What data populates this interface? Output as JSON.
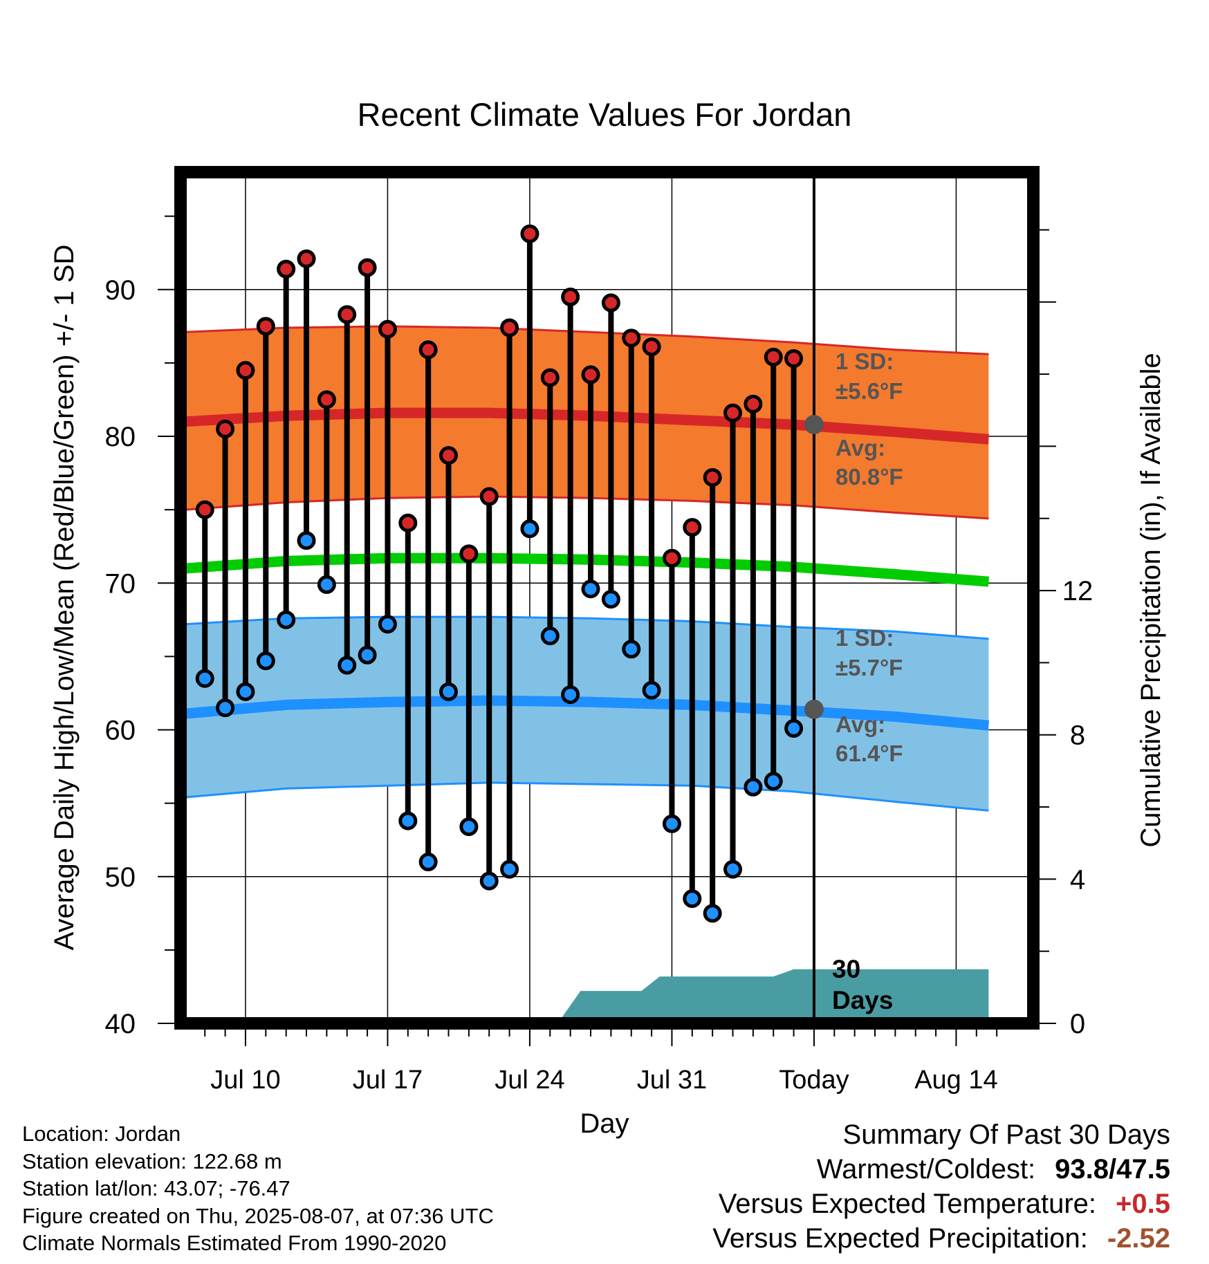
{
  "chart_data": {
    "type": "line",
    "title": "Recent Climate Values For Jordan",
    "xlabel": "Day",
    "ylabel": "Average Daily High/Low/Mean (Red/Blue/Green) +/- 1 SD",
    "y2label": "Cumulative Precipitation (in), If Available",
    "ylim": [
      40,
      98
    ],
    "y2lim": [
      0,
      23.6
    ],
    "yticks": [
      40,
      50,
      60,
      70,
      80,
      90
    ],
    "y2ticks": [
      0,
      4,
      8,
      12
    ],
    "xlim": [
      -3.2,
      38.8
    ],
    "xticks": [
      {
        "day": 0,
        "label": "Jul 10"
      },
      {
        "day": 7,
        "label": "Jul 17"
      },
      {
        "day": 14,
        "label": "Jul 24"
      },
      {
        "day": 21,
        "label": "Jul 31"
      },
      {
        "day": 28,
        "label": "Today"
      },
      {
        "day": 35,
        "label": "Aug 14"
      }
    ],
    "grid": true,
    "colors": {
      "high": "#d62728",
      "low": "#1e90ff",
      "mean": "#00cc00",
      "high_band": "#f47a2e",
      "low_band": "#82c1e6",
      "precip": "#4a9ca3",
      "avg_marker": "#555555"
    },
    "daily_observations": {
      "days": [
        -2,
        -1,
        0,
        1,
        2,
        3,
        4,
        5,
        6,
        7,
        8,
        9,
        10,
        11,
        12,
        13,
        14,
        15,
        16,
        17,
        18,
        19,
        20,
        21,
        22,
        23,
        24,
        25,
        26,
        27
      ],
      "high": [
        75.0,
        80.5,
        84.5,
        87.5,
        91.4,
        92.1,
        82.5,
        88.3,
        91.5,
        87.3,
        74.1,
        85.9,
        78.7,
        72.0,
        75.9,
        87.4,
        93.8,
        84.0,
        89.5,
        84.2,
        89.1,
        86.7,
        86.1,
        71.7,
        73.8,
        77.2,
        81.6,
        82.2,
        85.4,
        85.3
      ],
      "low": [
        63.5,
        61.5,
        62.6,
        64.7,
        67.5,
        72.9,
        69.9,
        64.4,
        65.1,
        67.2,
        53.8,
        51.0,
        62.6,
        53.4,
        49.7,
        50.5,
        73.7,
        66.4,
        62.4,
        69.6,
        68.9,
        65.5,
        62.7,
        53.6,
        48.5,
        47.5,
        50.5,
        56.1,
        56.5,
        60.1
      ]
    },
    "normals": {
      "days": [
        -3,
        2,
        7,
        12,
        17,
        22,
        27,
        32,
        36.6
      ],
      "high_avg": [
        81.0,
        81.4,
        81.6,
        81.6,
        81.4,
        81.1,
        80.8,
        80.3,
        79.8
      ],
      "high_sd_upper": [
        87.1,
        87.4,
        87.5,
        87.4,
        87.1,
        86.8,
        86.4,
        85.9,
        85.6
      ],
      "high_sd_lower": [
        75.0,
        75.5,
        75.8,
        75.9,
        75.8,
        75.6,
        75.3,
        74.8,
        74.4
      ],
      "mean": [
        71.0,
        71.5,
        71.7,
        71.7,
        71.6,
        71.4,
        71.1,
        70.6,
        70.1
      ],
      "low_avg": [
        61.1,
        61.7,
        61.9,
        62.0,
        61.9,
        61.7,
        61.3,
        60.9,
        60.3
      ],
      "low_sd_upper": [
        67.2,
        67.6,
        67.7,
        67.7,
        67.6,
        67.4,
        67.0,
        66.7,
        66.2
      ],
      "low_sd_lower": [
        55.4,
        56.0,
        56.2,
        56.4,
        56.3,
        56.2,
        55.8,
        55.1,
        54.5
      ]
    },
    "precipitation_cumulative": {
      "days": [
        -3,
        6.4,
        7.2,
        15.5,
        16.5,
        19.5,
        20.4,
        22.2,
        26,
        27,
        36.6
      ],
      "values": [
        0,
        0,
        0.1,
        0.1,
        0.9,
        0.9,
        1.3,
        1.3,
        1.3,
        1.5,
        1.5
      ]
    },
    "annotations": {
      "high_sd": {
        "line1": "1 SD:",
        "line2": "±5.6°F"
      },
      "high_avg": {
        "line1": "Avg:",
        "line2": "80.8°F",
        "value": 80.8
      },
      "low_sd": {
        "line1": "1 SD:",
        "line2": "±5.7°F"
      },
      "low_avg": {
        "line1": "Avg:",
        "line2": "61.4°F",
        "value": 61.4
      },
      "window": {
        "line1": "30",
        "line2": "Days"
      }
    }
  },
  "footer": {
    "location": "Location: Jordan",
    "elevation": "Station elevation: 122.68 m",
    "latlon": "Station lat/lon: 43.07; -76.47",
    "created": "Figure created on Thu, 2025-08-07, at 07:36 UTC",
    "normals": "Climate Normals Estimated From 1990-2020"
  },
  "summary": {
    "heading": "Summary Of Past 30 Days",
    "warm_cold_label": "Warmest/Coldest:",
    "warm_cold_value": "93.8/47.5",
    "temp_label": "Versus Expected Temperature:",
    "temp_value": "+0.5",
    "precip_label": "Versus Expected Precipitation:",
    "precip_value": "-2.52"
  }
}
